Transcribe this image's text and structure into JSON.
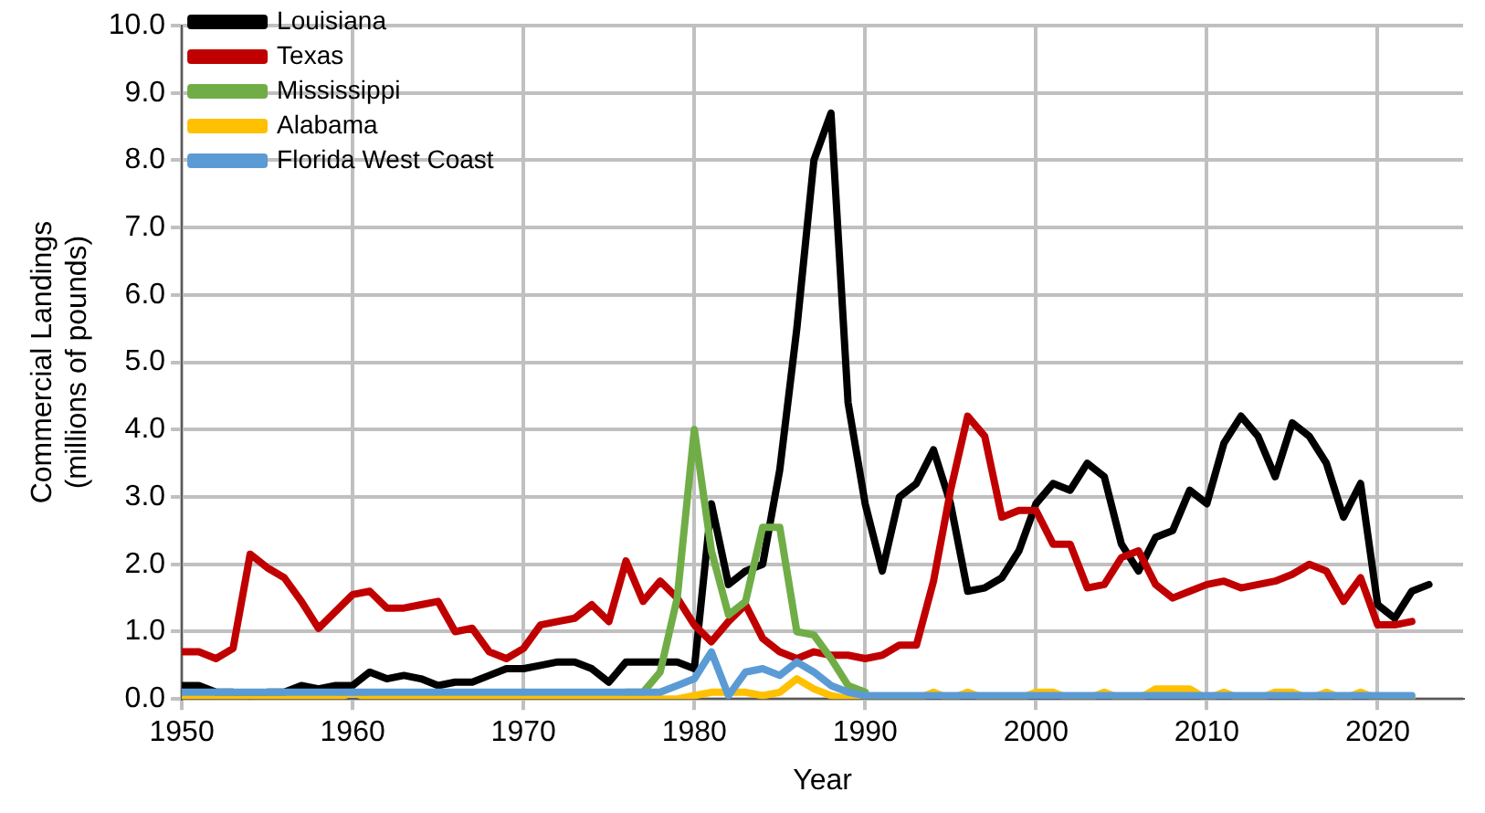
{
  "chart_data": {
    "type": "line",
    "xlabel": "Year",
    "ylabel": "Commercial Landings\n(millions of pounds)",
    "x": [
      1950,
      1951,
      1952,
      1953,
      1954,
      1955,
      1956,
      1957,
      1958,
      1959,
      1960,
      1961,
      1962,
      1963,
      1964,
      1965,
      1966,
      1967,
      1968,
      1969,
      1970,
      1971,
      1972,
      1973,
      1974,
      1975,
      1976,
      1977,
      1978,
      1979,
      1980,
      1981,
      1982,
      1983,
      1984,
      1985,
      1986,
      1987,
      1988,
      1989,
      1990,
      1991,
      1992,
      1993,
      1994,
      1995,
      1996,
      1997,
      1998,
      1999,
      2000,
      2001,
      2002,
      2003,
      2004,
      2005,
      2006,
      2007,
      2008,
      2009,
      2010,
      2011,
      2012,
      2013,
      2014,
      2015,
      2016,
      2017,
      2018,
      2019,
      2020,
      2021,
      2022,
      2023
    ],
    "series": [
      {
        "name": "Louisiana",
        "color": "#000000",
        "values": [
          0.2,
          0.2,
          0.1,
          0.1,
          0.05,
          0.1,
          0.1,
          0.2,
          0.15,
          0.2,
          0.2,
          0.4,
          0.3,
          0.35,
          0.3,
          0.2,
          0.25,
          0.25,
          0.35,
          0.45,
          0.45,
          0.5,
          0.55,
          0.55,
          0.45,
          0.25,
          0.55,
          0.55,
          0.55,
          0.55,
          0.45,
          2.9,
          1.7,
          1.9,
          2.0,
          3.4,
          5.5,
          8.0,
          8.7,
          4.4,
          2.9,
          1.9,
          3.0,
          3.2,
          3.7,
          2.9,
          1.6,
          1.65,
          1.8,
          2.2,
          2.9,
          3.2,
          3.1,
          3.5,
          3.3,
          2.3,
          1.9,
          2.4,
          2.5,
          3.1,
          2.9,
          3.8,
          4.2,
          3.9,
          3.3,
          4.1,
          3.9,
          3.5,
          2.7,
          3.2,
          1.4,
          1.2,
          1.6,
          1.7
        ]
      },
      {
        "name": "Texas",
        "color": "#c00000",
        "values": [
          0.7,
          0.7,
          0.6,
          0.75,
          2.15,
          1.95,
          1.8,
          1.45,
          1.05,
          1.3,
          1.55,
          1.6,
          1.35,
          1.35,
          1.4,
          1.45,
          1.0,
          1.05,
          0.7,
          0.6,
          0.75,
          1.1,
          1.15,
          1.2,
          1.4,
          1.15,
          2.05,
          1.45,
          1.75,
          1.5,
          1.1,
          0.85,
          1.15,
          1.4,
          0.9,
          0.7,
          0.6,
          0.7,
          0.65,
          0.65,
          0.6,
          0.65,
          0.8,
          0.8,
          1.75,
          3.1,
          4.2,
          3.9,
          2.7,
          2.8,
          2.8,
          2.3,
          2.3,
          1.65,
          1.7,
          2.1,
          2.2,
          1.7,
          1.5,
          1.6,
          1.7,
          1.75,
          1.65,
          1.7,
          1.75,
          1.85,
          2.0,
          1.9,
          1.45,
          1.8,
          1.1,
          1.1,
          1.15,
          null
        ]
      },
      {
        "name": "Mississippi",
        "color": "#70ad47",
        "values": [
          null,
          null,
          null,
          null,
          null,
          null,
          null,
          null,
          null,
          null,
          null,
          null,
          null,
          null,
          null,
          null,
          null,
          null,
          null,
          null,
          null,
          null,
          null,
          null,
          null,
          null,
          0.1,
          0.1,
          0.4,
          1.5,
          4.0,
          2.2,
          1.25,
          1.45,
          2.55,
          2.55,
          1.0,
          0.95,
          0.6,
          0.2,
          0.1,
          null,
          null,
          null,
          null,
          null,
          null,
          null,
          null,
          null,
          null,
          null,
          null,
          null,
          null,
          null,
          null,
          null,
          null,
          null,
          null,
          null,
          null,
          null,
          null,
          null,
          null,
          null,
          null,
          null,
          null,
          null,
          null,
          null
        ]
      },
      {
        "name": "Alabama",
        "color": "#ffc000",
        "values": [
          0,
          0,
          0,
          0,
          0,
          0,
          0,
          0,
          0,
          0,
          0.1,
          0,
          0,
          0,
          0,
          0,
          0,
          0,
          0,
          0,
          0,
          0,
          0,
          0,
          0,
          0,
          0,
          0,
          0,
          0,
          0.05,
          0.1,
          0.1,
          0.1,
          0.05,
          0.1,
          0.3,
          0.15,
          0.05,
          0,
          0,
          0,
          0,
          0,
          0.1,
          0,
          0.1,
          0,
          0,
          0,
          0.1,
          0.1,
          0,
          0,
          0.1,
          0,
          0,
          0.15,
          0.15,
          0.15,
          0,
          0.1,
          0,
          0,
          0.1,
          0.1,
          0,
          0.1,
          0,
          0.1,
          0,
          0,
          0,
          null
        ]
      },
      {
        "name": "Florida West Coast",
        "color": "#5b9bd5",
        "values": [
          0.1,
          0.1,
          0.1,
          0.1,
          0.1,
          0.1,
          0.1,
          0.1,
          0.1,
          0.1,
          0.1,
          0.1,
          0.1,
          0.1,
          0.1,
          0.1,
          0.1,
          0.1,
          0.1,
          0.1,
          0.1,
          0.1,
          0.1,
          0.1,
          0.1,
          0.1,
          0.1,
          0.1,
          0.1,
          0.2,
          0.3,
          0.7,
          0.05,
          0.4,
          0.45,
          0.35,
          0.55,
          0.4,
          0.2,
          0.1,
          0.05,
          0.05,
          0.05,
          0.05,
          0.05,
          0.05,
          0.05,
          0.05,
          0.05,
          0.05,
          0.05,
          0.05,
          0.05,
          0.05,
          0.05,
          0.05,
          0.05,
          0.05,
          0.05,
          0.05,
          0.05,
          0.05,
          0.05,
          0.05,
          0.05,
          0.05,
          0.05,
          0.05,
          0.05,
          0.05,
          0.05,
          0.05,
          0.05,
          null
        ]
      }
    ],
    "xlim": [
      1950,
      2025
    ],
    "xticks": [
      1950,
      1960,
      1970,
      1980,
      1990,
      2000,
      2010,
      2020
    ],
    "ylim": [
      0,
      10
    ],
    "yticks": [
      {
        "value": 0,
        "label": "0.0"
      },
      {
        "value": 1,
        "label": "1.0"
      },
      {
        "value": 2,
        "label": "2.0"
      },
      {
        "value": 3,
        "label": "3.0"
      },
      {
        "value": 4,
        "label": "4.0"
      },
      {
        "value": 5,
        "label": "5.0"
      },
      {
        "value": 6,
        "label": "6.0"
      },
      {
        "value": 7,
        "label": "7.0"
      },
      {
        "value": 8,
        "label": "8.0"
      },
      {
        "value": 9,
        "label": "9.0"
      },
      {
        "value": 10,
        "label": "10.0"
      }
    ],
    "grid": true,
    "legend": "top left",
    "marker": "none",
    "line_style": "solid"
  }
}
